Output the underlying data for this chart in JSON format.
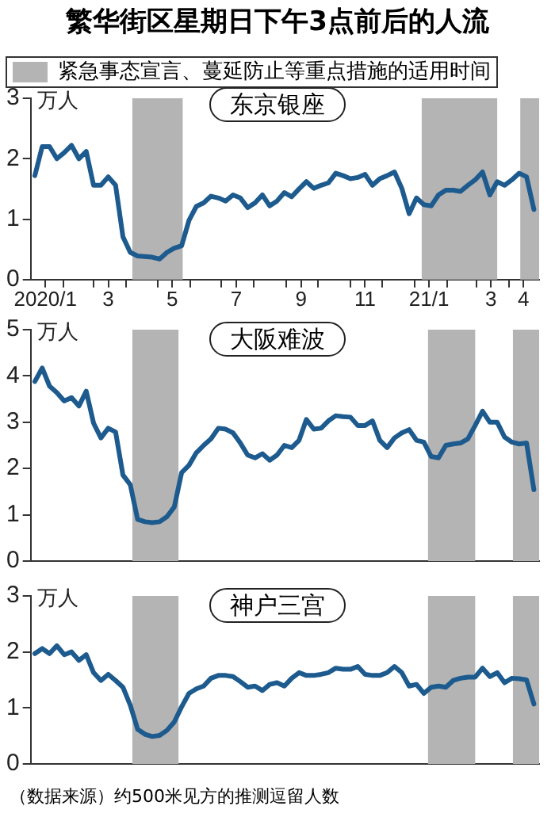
{
  "chart_data": [
    {
      "type": "line",
      "title": "繁华街区星期日下午3点前后的人流",
      "subtitle": "东京银座",
      "ylabel": "万人",
      "legend": "top",
      "tick_labels": "xy",
      "x": [
        "2020-01-05",
        "2020-01-12",
        "2020-01-19",
        "2020-01-26",
        "2020-02-02",
        "2020-02-09",
        "2020-02-16",
        "2020-02-23",
        "2020-03-01",
        "2020-03-08",
        "2020-03-15",
        "2020-03-22",
        "2020-03-29",
        "2020-04-05",
        "2020-04-12",
        "2020-04-19",
        "2020-04-26",
        "2020-05-03",
        "2020-05-10",
        "2020-05-17",
        "2020-05-24",
        "2020-05-31",
        "2020-06-07",
        "2020-06-14",
        "2020-06-21",
        "2020-06-28",
        "2020-07-05",
        "2020-07-12",
        "2020-07-19",
        "2020-07-26",
        "2020-08-02",
        "2020-08-09",
        "2020-08-16",
        "2020-08-23",
        "2020-08-30",
        "2020-09-06",
        "2020-09-13",
        "2020-09-20",
        "2020-09-27",
        "2020-10-04",
        "2020-10-11",
        "2020-10-18",
        "2020-10-25",
        "2020-11-01",
        "2020-11-08",
        "2020-11-15",
        "2020-11-22",
        "2020-11-29",
        "2020-12-06",
        "2020-12-13",
        "2020-12-20",
        "2020-12-27",
        "2021-01-03",
        "2021-01-10",
        "2021-01-17",
        "2021-01-24",
        "2021-01-31",
        "2021-02-07",
        "2021-02-14",
        "2021-02-21",
        "2021-02-28",
        "2021-03-07",
        "2021-03-14",
        "2021-03-21",
        "2021-03-28",
        "2021-04-04",
        "2021-04-11",
        "2021-04-18",
        "2021-04-25"
      ],
      "values": [
        1.72,
        2.2,
        2.2,
        2.0,
        2.1,
        2.22,
        2.0,
        2.12,
        1.56,
        1.56,
        1.7,
        1.56,
        0.71,
        0.45,
        0.39,
        0.38,
        0.37,
        0.34,
        0.45,
        0.52,
        0.56,
        0.98,
        1.21,
        1.27,
        1.38,
        1.35,
        1.3,
        1.4,
        1.35,
        1.19,
        1.27,
        1.4,
        1.22,
        1.3,
        1.44,
        1.37,
        1.5,
        1.62,
        1.51,
        1.56,
        1.6,
        1.76,
        1.72,
        1.67,
        1.69,
        1.74,
        1.56,
        1.67,
        1.72,
        1.78,
        1.51,
        1.09,
        1.35,
        1.24,
        1.22,
        1.4,
        1.48,
        1.48,
        1.46,
        1.56,
        1.65,
        1.78,
        1.4,
        1.62,
        1.56,
        1.65,
        1.76,
        1.7,
        1.16
      ],
      "color": "#1d5b8f",
      "xlim": [
        "2020-01-01",
        "2021-04-30"
      ],
      "xticks": [
        {
          "value": "2020-01-15",
          "label": "2020/1"
        },
        {
          "value": "2020-02-01",
          "label": null
        },
        {
          "value": "2020-03-01",
          "label": null
        },
        {
          "value": "2020-03-15",
          "label": "3"
        },
        {
          "value": "2020-04-01",
          "label": null
        },
        {
          "value": "2020-05-01",
          "label": null
        },
        {
          "value": "2020-05-15",
          "label": "5"
        },
        {
          "value": "2020-06-01",
          "label": null
        },
        {
          "value": "2020-07-01",
          "label": null
        },
        {
          "value": "2020-07-15",
          "label": "7"
        },
        {
          "value": "2020-08-01",
          "label": null
        },
        {
          "value": "2020-09-01",
          "label": null
        },
        {
          "value": "2020-09-15",
          "label": "9"
        },
        {
          "value": "2020-10-01",
          "label": null
        },
        {
          "value": "2020-11-01",
          "label": null
        },
        {
          "value": "2020-11-15",
          "label": "11"
        },
        {
          "value": "2020-12-01",
          "label": null
        },
        {
          "value": "2021-01-01",
          "label": null
        },
        {
          "value": "2021-01-15",
          "label": "21/1"
        },
        {
          "value": "2021-02-01",
          "label": null
        },
        {
          "value": "2021-03-01",
          "label": null
        },
        {
          "value": "2021-03-15",
          "label": "3"
        },
        {
          "value": "2021-04-01",
          "label": null
        },
        {
          "value": "2021-04-15",
          "label": "4"
        }
      ],
      "ylim": [
        0,
        3
      ],
      "yticks": [
        0,
        1,
        2,
        3
      ],
      "bands": [
        {
          "axis": "x",
          "from": "2020-04-07",
          "to": "2020-05-25",
          "label": "紧急事态宣言、蔓延防止等重点措施的适用时间",
          "color": "#b4b4b4"
        },
        {
          "axis": "x",
          "from": "2021-01-08",
          "to": "2021-03-21",
          "color": "#b4b4b4"
        },
        {
          "axis": "x",
          "from": "2021-04-12",
          "to": "2021-04-30",
          "color": "#b4b4b4"
        }
      ]
    },
    {
      "type": "line",
      "subtitle": "大阪难波",
      "ylabel": "万人",
      "tick_labels": "y",
      "x": [
        "2020-01-05",
        "2020-01-12",
        "2020-01-19",
        "2020-01-26",
        "2020-02-02",
        "2020-02-09",
        "2020-02-16",
        "2020-02-23",
        "2020-03-01",
        "2020-03-08",
        "2020-03-15",
        "2020-03-22",
        "2020-03-29",
        "2020-04-05",
        "2020-04-12",
        "2020-04-19",
        "2020-04-26",
        "2020-05-03",
        "2020-05-10",
        "2020-05-17",
        "2020-05-24",
        "2020-05-31",
        "2020-06-07",
        "2020-06-14",
        "2020-06-21",
        "2020-06-28",
        "2020-07-05",
        "2020-07-12",
        "2020-07-19",
        "2020-07-26",
        "2020-08-02",
        "2020-08-09",
        "2020-08-16",
        "2020-08-23",
        "2020-08-30",
        "2020-09-06",
        "2020-09-13",
        "2020-09-20",
        "2020-09-27",
        "2020-10-04",
        "2020-10-11",
        "2020-10-18",
        "2020-10-25",
        "2020-11-01",
        "2020-11-08",
        "2020-11-15",
        "2020-11-22",
        "2020-11-29",
        "2020-12-06",
        "2020-12-13",
        "2020-12-20",
        "2020-12-27",
        "2021-01-03",
        "2021-01-10",
        "2021-01-17",
        "2021-01-24",
        "2021-01-31",
        "2021-02-07",
        "2021-02-14",
        "2021-02-21",
        "2021-02-28",
        "2021-03-07",
        "2021-03-14",
        "2021-03-21",
        "2021-03-28",
        "2021-04-04",
        "2021-04-11",
        "2021-04-18",
        "2021-04-25"
      ],
      "values": [
        3.88,
        4.17,
        3.78,
        3.64,
        3.46,
        3.53,
        3.35,
        3.67,
        2.98,
        2.66,
        2.87,
        2.79,
        1.86,
        1.65,
        0.9,
        0.85,
        0.83,
        0.85,
        0.96,
        1.17,
        1.91,
        2.07,
        2.34,
        2.5,
        2.64,
        2.87,
        2.85,
        2.77,
        2.55,
        2.29,
        2.23,
        2.32,
        2.18,
        2.29,
        2.5,
        2.45,
        2.61,
        3.06,
        2.85,
        2.87,
        3.03,
        3.14,
        3.12,
        3.11,
        2.93,
        2.93,
        3.03,
        2.61,
        2.45,
        2.66,
        2.77,
        2.84,
        2.61,
        2.57,
        2.26,
        2.23,
        2.5,
        2.53,
        2.55,
        2.64,
        2.93,
        3.24,
        3.0,
        3.0,
        2.68,
        2.57,
        2.53,
        2.55,
        1.54
      ],
      "color": "#1d5b8f",
      "xlim": [
        "2020-01-01",
        "2021-04-30"
      ],
      "ylim": [
        0,
        5
      ],
      "yticks": [
        0,
        1,
        2,
        3,
        4,
        5
      ],
      "bands": [
        {
          "axis": "x",
          "from": "2020-04-07",
          "to": "2020-05-21",
          "color": "#b4b4b4"
        },
        {
          "axis": "x",
          "from": "2021-01-14",
          "to": "2021-02-28",
          "color": "#b4b4b4"
        },
        {
          "axis": "x",
          "from": "2021-04-05",
          "to": "2021-04-30",
          "color": "#b4b4b4"
        }
      ]
    },
    {
      "type": "line",
      "subtitle": "神户三宫",
      "ylabel": "万人",
      "tick_labels": "y",
      "x": [
        "2020-01-05",
        "2020-01-12",
        "2020-01-19",
        "2020-01-26",
        "2020-02-02",
        "2020-02-09",
        "2020-02-16",
        "2020-02-23",
        "2020-03-01",
        "2020-03-08",
        "2020-03-15",
        "2020-03-22",
        "2020-03-29",
        "2020-04-05",
        "2020-04-12",
        "2020-04-19",
        "2020-04-26",
        "2020-05-03",
        "2020-05-10",
        "2020-05-17",
        "2020-05-24",
        "2020-05-31",
        "2020-06-07",
        "2020-06-14",
        "2020-06-21",
        "2020-06-28",
        "2020-07-05",
        "2020-07-12",
        "2020-07-19",
        "2020-07-26",
        "2020-08-02",
        "2020-08-09",
        "2020-08-16",
        "2020-08-23",
        "2020-08-30",
        "2020-09-06",
        "2020-09-13",
        "2020-09-20",
        "2020-09-27",
        "2020-10-04",
        "2020-10-11",
        "2020-10-18",
        "2020-10-25",
        "2020-11-01",
        "2020-11-08",
        "2020-11-15",
        "2020-11-22",
        "2020-11-29",
        "2020-12-06",
        "2020-12-13",
        "2020-12-20",
        "2020-12-27",
        "2021-01-03",
        "2021-01-10",
        "2021-01-17",
        "2021-01-24",
        "2021-01-31",
        "2021-02-07",
        "2021-02-14",
        "2021-02-21",
        "2021-02-28",
        "2021-03-07",
        "2021-03-14",
        "2021-03-21",
        "2021-03-28",
        "2021-04-04",
        "2021-04-11",
        "2021-04-18",
        "2021-04-25"
      ],
      "values": [
        1.97,
        2.06,
        1.97,
        2.11,
        1.95,
        2.0,
        1.85,
        1.95,
        1.63,
        1.49,
        1.6,
        1.49,
        1.37,
        1.05,
        0.62,
        0.53,
        0.49,
        0.51,
        0.6,
        0.75,
        1.02,
        1.26,
        1.34,
        1.39,
        1.53,
        1.58,
        1.58,
        1.56,
        1.47,
        1.37,
        1.39,
        1.31,
        1.42,
        1.45,
        1.39,
        1.53,
        1.63,
        1.58,
        1.58,
        1.6,
        1.63,
        1.71,
        1.69,
        1.69,
        1.74,
        1.6,
        1.58,
        1.58,
        1.63,
        1.74,
        1.63,
        1.39,
        1.42,
        1.26,
        1.37,
        1.39,
        1.37,
        1.49,
        1.53,
        1.55,
        1.55,
        1.71,
        1.56,
        1.63,
        1.45,
        1.53,
        1.52,
        1.5,
        1.07
      ],
      "color": "#1d5b8f",
      "xlim": [
        "2020-01-01",
        "2021-04-30"
      ],
      "ylim": [
        0,
        3
      ],
      "yticks": [
        0,
        1,
        2,
        3
      ],
      "bands": [
        {
          "axis": "x",
          "from": "2020-04-07",
          "to": "2020-05-21",
          "color": "#b4b4b4"
        },
        {
          "axis": "x",
          "from": "2021-01-14",
          "to": "2021-02-28",
          "color": "#b4b4b4"
        },
        {
          "axis": "x",
          "from": "2021-04-05",
          "to": "2021-04-30",
          "color": "#b4b4b4"
        }
      ],
      "annotations": [
        "（数据来源）约500米见方的推测逗留人数"
      ]
    }
  ]
}
